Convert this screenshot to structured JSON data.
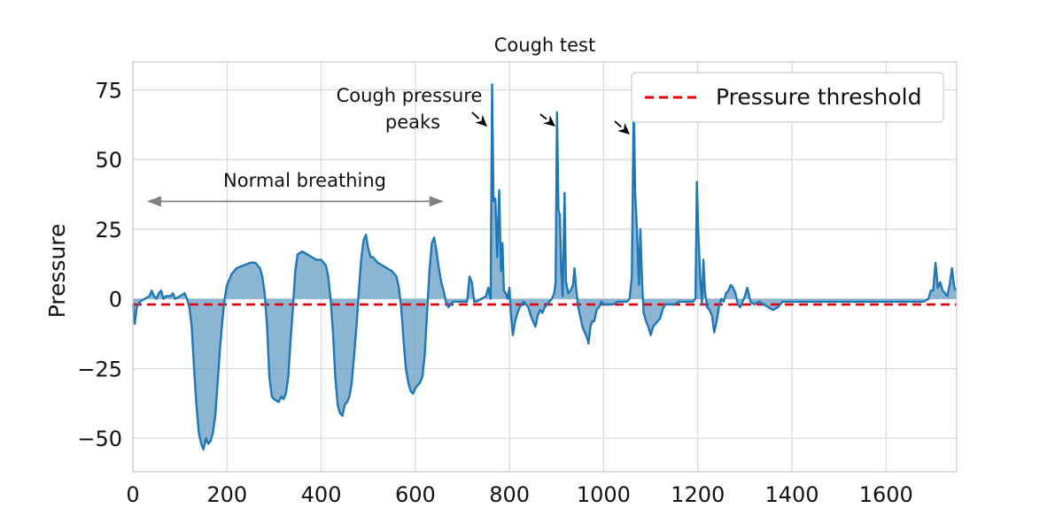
{
  "chart_data": {
    "type": "line",
    "title": "Cough test",
    "xlabel": "",
    "ylabel": "Pressure",
    "xlim": [
      0,
      1750
    ],
    "ylim": [
      -62,
      85
    ],
    "x_ticks": [
      0,
      200,
      400,
      600,
      800,
      1000,
      1200,
      1400,
      1600
    ],
    "y_ticks": [
      -50,
      -25,
      0,
      25,
      50,
      75
    ],
    "x_tick_labels": [
      "0",
      "200",
      "400",
      "600",
      "800",
      "1000",
      "1200",
      "1400",
      "1600"
    ],
    "y_tick_labels": [
      "−50",
      "−25",
      "0",
      "25",
      "50",
      "75"
    ],
    "grid": true,
    "legend_position": "top-right",
    "colors": {
      "series": "#1f77b4",
      "fill": "#6fa3c9",
      "threshold": "#e8000b",
      "grid": "#d8d8d8",
      "arrow": "#808080"
    },
    "threshold": {
      "name": "Pressure threshold",
      "value": -2,
      "style": "dashed"
    },
    "series": [
      {
        "points": [
          [
            0,
            -2
          ],
          [
            4,
            -9
          ],
          [
            8,
            -3
          ],
          [
            15,
            -1
          ],
          [
            25,
            0
          ],
          [
            35,
            1
          ],
          [
            40,
            3
          ],
          [
            45,
            1
          ],
          [
            50,
            0
          ],
          [
            55,
            2
          ],
          [
            60,
            3
          ],
          [
            65,
            0
          ],
          [
            70,
            1
          ],
          [
            80,
            1
          ],
          [
            85,
            2
          ],
          [
            90,
            0
          ],
          [
            100,
            1
          ],
          [
            110,
            2
          ],
          [
            115,
            0
          ],
          [
            120,
            -3
          ],
          [
            125,
            -10
          ],
          [
            130,
            -25
          ],
          [
            135,
            -38
          ],
          [
            140,
            -48
          ],
          [
            145,
            -52
          ],
          [
            150,
            -54
          ],
          [
            155,
            -50
          ],
          [
            160,
            -52
          ],
          [
            165,
            -51
          ],
          [
            170,
            -48
          ],
          [
            175,
            -42
          ],
          [
            180,
            -30
          ],
          [
            185,
            -18
          ],
          [
            190,
            -8
          ],
          [
            195,
            0
          ],
          [
            200,
            5
          ],
          [
            210,
            9
          ],
          [
            220,
            11
          ],
          [
            235,
            12
          ],
          [
            250,
            13
          ],
          [
            260,
            13
          ],
          [
            270,
            11
          ],
          [
            275,
            8
          ],
          [
            280,
            2
          ],
          [
            285,
            -10
          ],
          [
            290,
            -28
          ],
          [
            295,
            -35
          ],
          [
            300,
            -36
          ],
          [
            310,
            -37
          ],
          [
            315,
            -35
          ],
          [
            320,
            -36
          ],
          [
            325,
            -34
          ],
          [
            330,
            -28
          ],
          [
            335,
            -15
          ],
          [
            340,
            -3
          ],
          [
            345,
            10
          ],
          [
            350,
            16
          ],
          [
            360,
            17
          ],
          [
            370,
            16
          ],
          [
            380,
            15
          ],
          [
            390,
            14
          ],
          [
            400,
            14
          ],
          [
            410,
            12
          ],
          [
            415,
            8
          ],
          [
            420,
            0
          ],
          [
            425,
            -12
          ],
          [
            430,
            -28
          ],
          [
            435,
            -38
          ],
          [
            440,
            -41
          ],
          [
            445,
            -42
          ],
          [
            450,
            -38
          ],
          [
            455,
            -37
          ],
          [
            460,
            -35
          ],
          [
            465,
            -30
          ],
          [
            470,
            -20
          ],
          [
            475,
            -10
          ],
          [
            480,
            3
          ],
          [
            485,
            14
          ],
          [
            490,
            21
          ],
          [
            495,
            23
          ],
          [
            500,
            18
          ],
          [
            505,
            15
          ],
          [
            510,
            15
          ],
          [
            520,
            13
          ],
          [
            530,
            12
          ],
          [
            540,
            11
          ],
          [
            550,
            10
          ],
          [
            560,
            8
          ],
          [
            565,
            4
          ],
          [
            570,
            -3
          ],
          [
            575,
            -15
          ],
          [
            580,
            -25
          ],
          [
            585,
            -30
          ],
          [
            590,
            -33
          ],
          [
            595,
            -34
          ],
          [
            600,
            -32
          ],
          [
            605,
            -31
          ],
          [
            610,
            -30
          ],
          [
            615,
            -28
          ],
          [
            620,
            -20
          ],
          [
            625,
            -5
          ],
          [
            630,
            10
          ],
          [
            635,
            20
          ],
          [
            640,
            22
          ],
          [
            645,
            17
          ],
          [
            650,
            11
          ],
          [
            655,
            6
          ],
          [
            660,
            3
          ],
          [
            665,
            -1
          ],
          [
            670,
            -3
          ],
          [
            680,
            -1
          ],
          [
            690,
            -1
          ],
          [
            700,
            -1
          ],
          [
            710,
            -1
          ],
          [
            715,
            8
          ],
          [
            720,
            6
          ],
          [
            725,
            -1
          ],
          [
            730,
            -1
          ],
          [
            740,
            0
          ],
          [
            750,
            1
          ],
          [
            755,
            4
          ],
          [
            760,
            0
          ],
          [
            763,
            77
          ],
          [
            766,
            35
          ],
          [
            770,
            36
          ],
          [
            774,
            15
          ],
          [
            778,
            39
          ],
          [
            782,
            10
          ],
          [
            785,
            20
          ],
          [
            788,
            3
          ],
          [
            792,
            2
          ],
          [
            796,
            0
          ],
          [
            800,
            4
          ],
          [
            803,
            -5
          ],
          [
            807,
            -13
          ],
          [
            812,
            -8
          ],
          [
            817,
            -5
          ],
          [
            822,
            -3
          ],
          [
            830,
            -1
          ],
          [
            840,
            -3
          ],
          [
            845,
            -6
          ],
          [
            850,
            -8
          ],
          [
            855,
            -10
          ],
          [
            860,
            -6
          ],
          [
            865,
            -4
          ],
          [
            870,
            -5
          ],
          [
            875,
            -3
          ],
          [
            880,
            -2
          ],
          [
            890,
            0
          ],
          [
            895,
            2
          ],
          [
            898,
            6
          ],
          [
            901,
            67
          ],
          [
            904,
            32
          ],
          [
            907,
            30
          ],
          [
            910,
            10
          ],
          [
            913,
            1
          ],
          [
            917,
            38
          ],
          [
            920,
            6
          ],
          [
            925,
            2
          ],
          [
            930,
            3
          ],
          [
            935,
            5
          ],
          [
            938,
            11
          ],
          [
            942,
            3
          ],
          [
            946,
            -3
          ],
          [
            950,
            -6
          ],
          [
            955,
            -10
          ],
          [
            960,
            -12
          ],
          [
            965,
            -14
          ],
          [
            968,
            -16
          ],
          [
            972,
            -10
          ],
          [
            976,
            -8
          ],
          [
            980,
            -8
          ],
          [
            985,
            -4
          ],
          [
            990,
            -3
          ],
          [
            995,
            -1
          ],
          [
            1000,
            -2
          ],
          [
            1010,
            -2
          ],
          [
            1020,
            -2
          ],
          [
            1030,
            -1
          ],
          [
            1040,
            -1
          ],
          [
            1050,
            -1
          ],
          [
            1055,
            0
          ],
          [
            1060,
            8
          ],
          [
            1064,
            72
          ],
          [
            1067,
            38
          ],
          [
            1071,
            24
          ],
          [
            1075,
            5
          ],
          [
            1078,
            25
          ],
          [
            1082,
            5
          ],
          [
            1085,
            -5
          ],
          [
            1090,
            -8
          ],
          [
            1095,
            -10
          ],
          [
            1100,
            -13
          ],
          [
            1105,
            -10
          ],
          [
            1110,
            -9
          ],
          [
            1115,
            -8
          ],
          [
            1120,
            -7
          ],
          [
            1125,
            -4
          ],
          [
            1130,
            -2
          ],
          [
            1140,
            -2
          ],
          [
            1150,
            -2
          ],
          [
            1160,
            -1
          ],
          [
            1170,
            -1
          ],
          [
            1180,
            -1
          ],
          [
            1190,
            -1
          ],
          [
            1195,
            0
          ],
          [
            1198,
            42
          ],
          [
            1201,
            25
          ],
          [
            1205,
            8
          ],
          [
            1209,
            -2
          ],
          [
            1212,
            14
          ],
          [
            1215,
            3
          ],
          [
            1220,
            -3
          ],
          [
            1225,
            -4
          ],
          [
            1230,
            -6
          ],
          [
            1235,
            -12
          ],
          [
            1240,
            -8
          ],
          [
            1245,
            -3
          ],
          [
            1250,
            0
          ],
          [
            1255,
            -1
          ],
          [
            1260,
            2
          ],
          [
            1265,
            3
          ],
          [
            1270,
            5
          ],
          [
            1275,
            4
          ],
          [
            1280,
            2
          ],
          [
            1285,
            -2
          ],
          [
            1290,
            -3
          ],
          [
            1295,
            -1
          ],
          [
            1300,
            1
          ],
          [
            1305,
            4
          ],
          [
            1308,
            2
          ],
          [
            1312,
            -1
          ],
          [
            1320,
            -2
          ],
          [
            1330,
            -1
          ],
          [
            1340,
            -2
          ],
          [
            1350,
            -3
          ],
          [
            1360,
            -4
          ],
          [
            1370,
            -3
          ],
          [
            1380,
            -1
          ],
          [
            1390,
            -1
          ],
          [
            1400,
            -1
          ],
          [
            1410,
            -1
          ],
          [
            1420,
            -1
          ],
          [
            1430,
            -1
          ],
          [
            1450,
            -1
          ],
          [
            1470,
            -1
          ],
          [
            1500,
            -1
          ],
          [
            1530,
            -1
          ],
          [
            1560,
            -1
          ],
          [
            1590,
            -1
          ],
          [
            1620,
            -1
          ],
          [
            1650,
            -1
          ],
          [
            1680,
            -1
          ],
          [
            1690,
            0
          ],
          [
            1695,
            3
          ],
          [
            1700,
            3
          ],
          [
            1705,
            13
          ],
          [
            1710,
            4
          ],
          [
            1715,
            6
          ],
          [
            1720,
            3
          ],
          [
            1725,
            2
          ],
          [
            1730,
            1
          ],
          [
            1735,
            5
          ],
          [
            1740,
            11
          ],
          [
            1745,
            4
          ],
          [
            1750,
            3
          ]
        ]
      }
    ],
    "annotations": [
      {
        "text_lines": [
          "Cough pressure",
          "peaks"
        ]
      },
      {
        "text": "Normal breathing",
        "arrow_x_range": [
          30,
          660
        ],
        "arrow_y": 35
      }
    ]
  }
}
